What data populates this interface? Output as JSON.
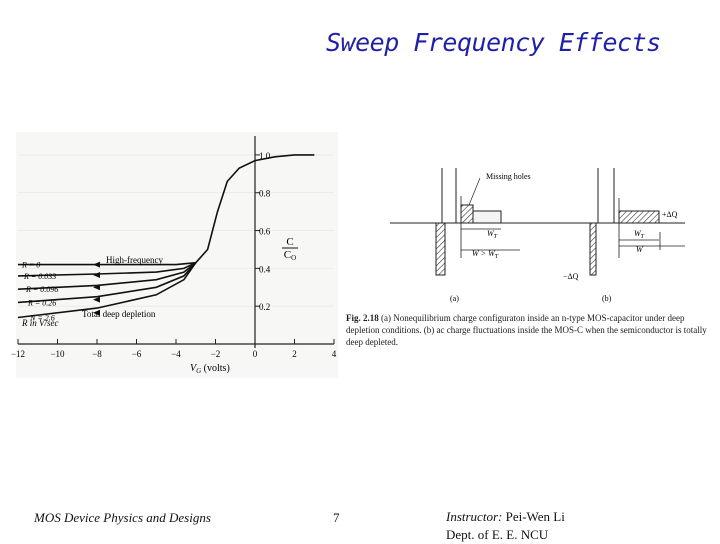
{
  "slide": {
    "title": "Sweep Frequency Effects",
    "footer": {
      "course": "MOS Device Physics and Designs",
      "page_number": "7",
      "instructor_label": "Instructor:",
      "instructor_name": "Pei-Wen Li",
      "department": "Dept. of E. E. NCU"
    }
  },
  "chart_data": {
    "type": "line",
    "title": "",
    "xlabel": "V_G (volts)",
    "ylabel": "C / C_O",
    "xlim": [
      -12,
      4
    ],
    "ylim": [
      0,
      1.1
    ],
    "x_ticks": [
      -12,
      -10,
      -8,
      -6,
      -4,
      -2,
      0,
      2,
      4
    ],
    "x_tick_labels": [
      "−12",
      "−10",
      "−8",
      "−6",
      "−4",
      "−2",
      "0",
      "2",
      "4"
    ],
    "y_ticks": [
      0.2,
      0.4,
      0.6,
      0.8,
      1.0
    ],
    "y_tick_labels": [
      "0.2",
      "0.4",
      "0.6",
      "0.8",
      "1.0"
    ],
    "series": [
      {
        "name": "R = 0",
        "label": "High-frequency",
        "x": [
          -12,
          -4,
          -3,
          -2.4,
          -1.9,
          -1.4,
          -0.8,
          0,
          1,
          2,
          3
        ],
        "y": [
          0.42,
          0.42,
          0.43,
          0.5,
          0.7,
          0.86,
          0.93,
          0.97,
          0.99,
          1.0,
          1.0
        ]
      },
      {
        "name": "R = 0.033",
        "x": [
          -12,
          -8,
          -5,
          -3.6,
          -3
        ],
        "y": [
          0.36,
          0.37,
          0.38,
          0.4,
          0.43
        ]
      },
      {
        "name": "R = 0.096",
        "x": [
          -12,
          -8,
          -5,
          -3.6,
          -3
        ],
        "y": [
          0.29,
          0.31,
          0.34,
          0.38,
          0.43
        ]
      },
      {
        "name": "R = 0.26",
        "x": [
          -12,
          -8,
          -5,
          -3.6,
          -3
        ],
        "y": [
          0.22,
          0.25,
          0.3,
          0.36,
          0.43
        ]
      },
      {
        "name": "N = 2.6",
        "label": "Total deep depletion",
        "x": [
          -12,
          -8,
          -5,
          -3.6,
          -3
        ],
        "y": [
          0.14,
          0.19,
          0.26,
          0.34,
          0.43
        ]
      }
    ],
    "legend_note": "R in V/sec",
    "annotations": [
      "High-frequency",
      "Total deep depletion"
    ]
  },
  "figure_right": {
    "label_missing_holes": "Missing holes",
    "label_wt": "W_T",
    "label_w_gt_wt": "W > W_T",
    "label_w": "W",
    "label_plus_dq": "+ΔQ",
    "label_minus_dq": "−ΔQ",
    "panel_a": "(a)",
    "panel_b": "(b)",
    "caption_label": "Fig. 2.18",
    "caption_text": "(a) Nonequilibrium charge configuraton inside an n-type MOS-capacitor under deep depletion conditions. (b) ac charge fluctuations inside the MOS-C when the semiconductor is totally deep depleted."
  }
}
